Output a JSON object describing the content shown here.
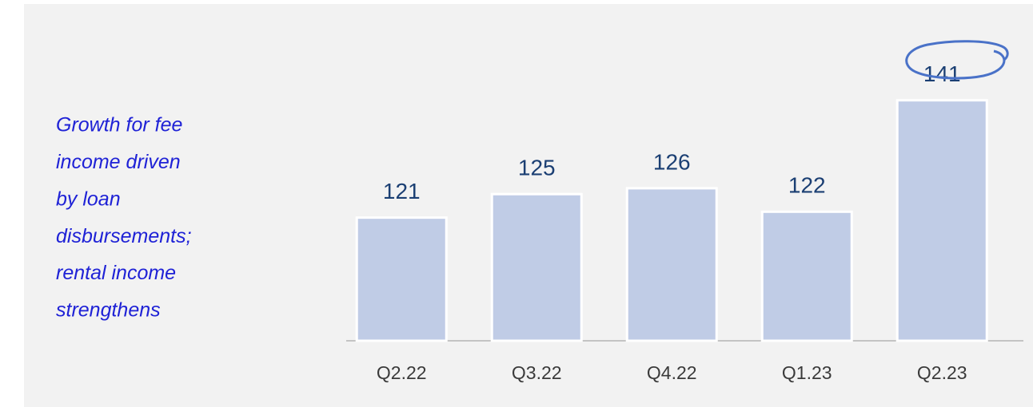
{
  "chart_data": {
    "type": "bar",
    "annotation": [
      "Growth for fee",
      "income driven",
      "by loan",
      "disbursements;",
      "rental income",
      "strengthens"
    ],
    "categories": [
      "Q2.22",
      "Q3.22",
      "Q4.22",
      "Q1.23",
      "Q2.23"
    ],
    "values": [
      121,
      125,
      126,
      122,
      141
    ],
    "color": "#c0cce6",
    "ylim": [
      100,
      150
    ]
  }
}
